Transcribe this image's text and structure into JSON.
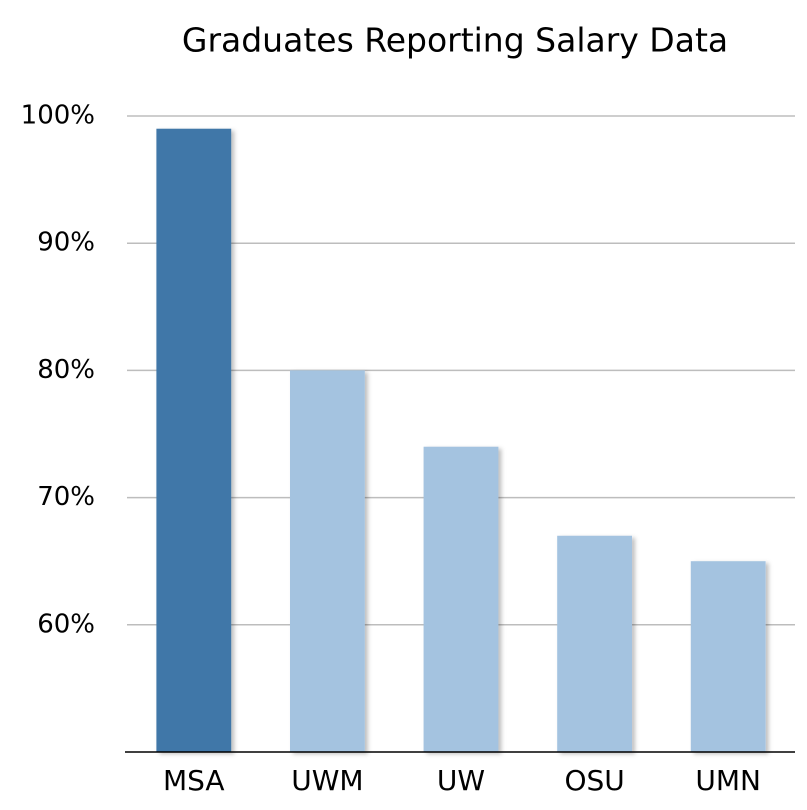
{
  "chart_data": {
    "type": "bar",
    "title": "Graduates Reporting Salary Data",
    "categories": [
      "MSA",
      "UWM",
      "UW",
      "OSU",
      "UMN"
    ],
    "values": [
      99,
      80,
      74,
      67,
      65
    ],
    "colors": [
      "#3f77a8",
      "#a4c3e0",
      "#a4c3e0",
      "#a4c3e0",
      "#a4c3e0"
    ],
    "ylim": [
      50,
      100
    ],
    "yticks": [
      {
        "value": 60,
        "label": "60%"
      },
      {
        "value": 70,
        "label": "70%"
      },
      {
        "value": 80,
        "label": "80%"
      },
      {
        "value": 90,
        "label": "90%"
      },
      {
        "value": 100,
        "label": "100%"
      }
    ],
    "grid": true
  }
}
